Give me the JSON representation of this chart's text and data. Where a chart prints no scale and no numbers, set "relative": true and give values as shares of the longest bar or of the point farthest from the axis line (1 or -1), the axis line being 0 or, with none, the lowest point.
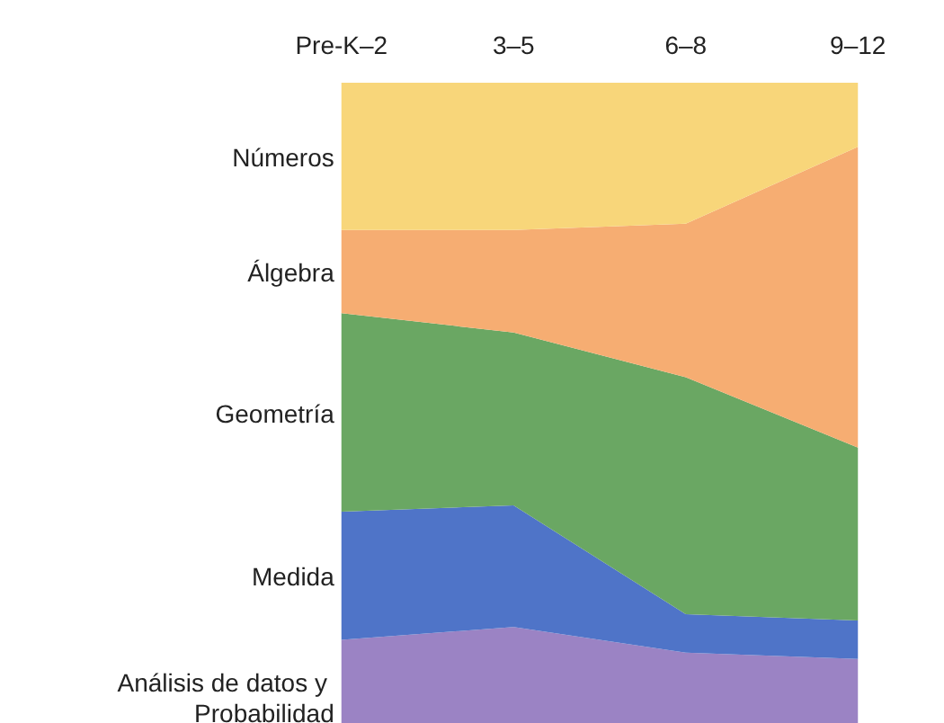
{
  "chart_data": {
    "type": "area",
    "relative": true,
    "stacked": true,
    "legend": false,
    "grid": false,
    "categories": [
      "Pre-K–2",
      "3–5",
      "6–8",
      "9–12"
    ],
    "series": [
      {
        "name": "Análisis de datos y Probabilidad",
        "color": "#9b83c4",
        "values": [
          0.13,
          0.15,
          0.11,
          0.1
        ]
      },
      {
        "name": "Medida",
        "color": "#4f74c8",
        "values": [
          0.2,
          0.19,
          0.06,
          0.06
        ]
      },
      {
        "name": "Geometría",
        "color": "#6aa763",
        "values": [
          0.31,
          0.27,
          0.37,
          0.27
        ]
      },
      {
        "name": "Álgebra",
        "color": "#f6ad72",
        "values": [
          0.13,
          0.16,
          0.24,
          0.47
        ]
      },
      {
        "name": "Números",
        "color": "#f8d67a",
        "values": [
          0.23,
          0.23,
          0.22,
          0.1
        ]
      }
    ]
  }
}
